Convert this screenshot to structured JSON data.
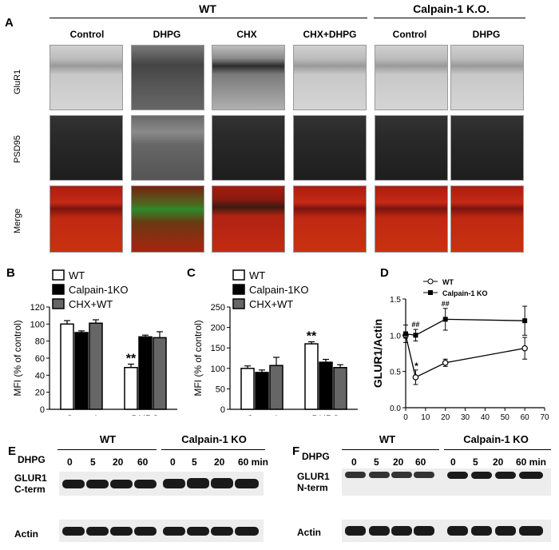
{
  "panelA": {
    "letter": "A",
    "groups": [
      "WT",
      "Calpain-1 K.O."
    ],
    "columns": [
      "Control",
      "DHPG",
      "CHX",
      "CHX+DHPG",
      "Control",
      "DHPG"
    ],
    "rows": [
      "GluR1",
      "PSD95",
      "Merge"
    ]
  },
  "panelB": {
    "letter": "B",
    "ylabel": "MFI (% of control)",
    "legend": [
      "WT",
      "Calpain-1KO",
      "CHX+WT"
    ],
    "sig": "**"
  },
  "panelC": {
    "letter": "C",
    "ylabel": "MFI (% of control)",
    "legend": [
      "WT",
      "Calpain-1KO",
      "CHX+WT"
    ],
    "sig": "**"
  },
  "panelD": {
    "letter": "D",
    "ylabel": "GLUR1/Actin",
    "xlabel": "Time (min)",
    "legend": [
      "WT",
      "Calpain-1 KO"
    ],
    "sig_hash": "##",
    "sig_star": "*"
  },
  "panelE": {
    "letter": "E",
    "groups": [
      "WT",
      "Calpain-1 KO"
    ],
    "dhpg_label": "DHPG",
    "times": [
      "0",
      "5",
      "20",
      "60",
      "0",
      "5",
      "20",
      "60 min"
    ],
    "row1": "GLUR1",
    "row1b": "C-term",
    "row2": "Actin"
  },
  "panelF": {
    "letter": "F",
    "groups": [
      "WT",
      "Calpain-1 KO"
    ],
    "dhpg_label": "DHPG",
    "times": [
      "0",
      "5",
      "20",
      "60",
      "0",
      "5",
      "20",
      "60 min"
    ],
    "row1": "GLUR1",
    "row1b": "N-term",
    "row2": "Actin"
  },
  "chart_data": [
    {
      "type": "bar",
      "panel": "B",
      "ylabel": "MFI (% of control)",
      "categories": [
        "Control",
        "DHPG"
      ],
      "ylim": [
        0,
        120
      ],
      "yticks": [
        0,
        20,
        40,
        60,
        80,
        100,
        120
      ],
      "series": [
        {
          "name": "WT",
          "values": [
            100,
            49
          ],
          "errors": [
            4,
            4
          ],
          "color": "#ffffff"
        },
        {
          "name": "Calpain-1KO",
          "values": [
            90,
            85
          ],
          "errors": [
            2,
            2
          ],
          "color": "#000000"
        },
        {
          "name": "CHX+WT",
          "values": [
            101,
            84
          ],
          "errors": [
            4,
            7
          ],
          "color": "#666666"
        }
      ]
    },
    {
      "type": "bar",
      "panel": "C",
      "ylabel": "MFI (% of control)",
      "categories": [
        "Control",
        "DHPG"
      ],
      "ylim": [
        0,
        250
      ],
      "yticks": [
        0,
        50,
        100,
        150,
        200,
        250
      ],
      "series": [
        {
          "name": "WT",
          "values": [
            100,
            160
          ],
          "errors": [
            6,
            5
          ],
          "color": "#ffffff"
        },
        {
          "name": "Calpain-1KO",
          "values": [
            90,
            115
          ],
          "errors": [
            6,
            7
          ],
          "color": "#000000"
        },
        {
          "name": "CHX+WT",
          "values": [
            107,
            102
          ],
          "errors": [
            20,
            7
          ],
          "color": "#666666"
        }
      ]
    },
    {
      "type": "line",
      "panel": "D",
      "xlabel": "Time (min)",
      "ylabel": "GLUR1/Actin",
      "xlim": [
        0,
        70
      ],
      "ylim": [
        0,
        1.5
      ],
      "xticks": [
        0,
        10,
        20,
        30,
        40,
        50,
        60,
        70
      ],
      "yticks": [
        0,
        0.5,
        1.0,
        1.5
      ],
      "series": [
        {
          "name": "WT",
          "x": [
            0,
            5,
            20,
            60
          ],
          "y": [
            1.0,
            0.42,
            0.62,
            0.82
          ],
          "errors": [
            0.04,
            0.1,
            0.05,
            0.15
          ],
          "marker": "open"
        },
        {
          "name": "Calpain-1 KO",
          "x": [
            0,
            5,
            20,
            60
          ],
          "y": [
            1.02,
            1.0,
            1.22,
            1.2
          ],
          "errors": [
            0.12,
            0.08,
            0.15,
            0.2
          ],
          "marker": "filled"
        }
      ]
    }
  ]
}
